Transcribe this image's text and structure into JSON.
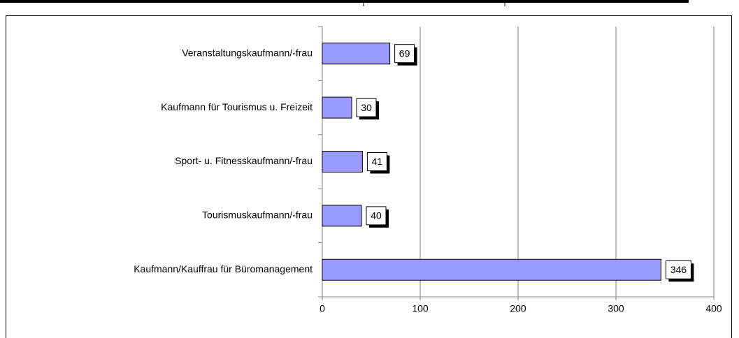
{
  "chart_data": {
    "type": "bar",
    "orientation": "horizontal",
    "categories": [
      "Veranstaltungskaufmann/-frau",
      "Kaufmann für Tourismus u. Freizeit",
      "Sport- u. Fitnesskaufmann/-frau",
      "Tourismuskaufmann/-frau",
      "Kaufmann/Kauffrau für Büromanagement"
    ],
    "values": [
      69,
      30,
      41,
      40,
      346
    ],
    "color": "#9999ff",
    "xlim": [
      0,
      400
    ],
    "xticks": [
      0,
      100,
      200,
      300,
      400
    ],
    "grid": true
  }
}
